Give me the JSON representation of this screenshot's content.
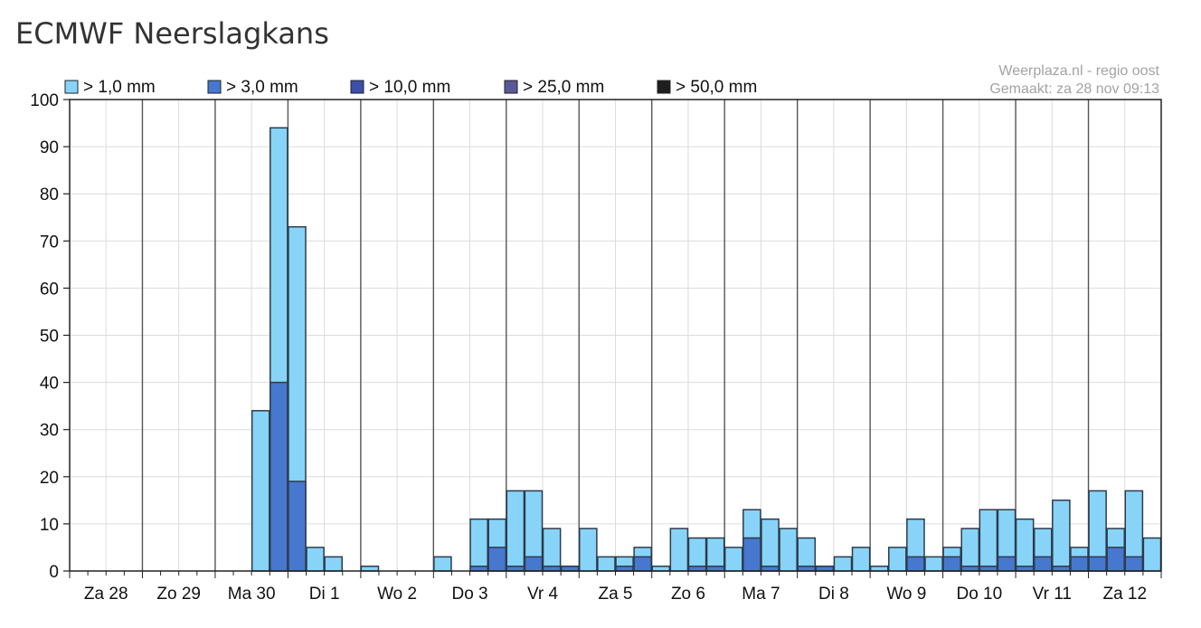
{
  "title": "ECMWF Neerslagkans",
  "credits": {
    "source": "Weerplaza.nl - regio oost",
    "made": "Gemaakt: za 28 nov 09:13"
  },
  "chart_data": {
    "type": "bar",
    "stacked": true,
    "ylim": [
      0,
      100
    ],
    "yticks": [
      0,
      10,
      20,
      30,
      40,
      50,
      60,
      70,
      80,
      90,
      100
    ],
    "legend_position": "top",
    "grid": true,
    "day_labels": [
      "Za 28",
      "Zo 29",
      "Ma 30",
      "Di 1",
      "Wo 2",
      "Do 3",
      "Vr 4",
      "Za 5",
      "Zo 6",
      "Ma 7",
      "Di 8",
      "Wo 9",
      "Do 10",
      "Vr 11",
      "Za 12"
    ],
    "bars_per_day": 4,
    "series": [
      {
        "name": "> 1,0 mm",
        "color": "#87d4f8",
        "values": [
          0,
          0,
          0,
          0,
          0,
          0,
          0,
          0,
          0,
          0,
          34,
          94,
          73,
          5,
          3,
          0,
          1,
          0,
          0,
          0,
          3,
          0,
          11,
          11,
          17,
          17,
          9,
          1,
          9,
          3,
          3,
          5,
          1,
          9,
          7,
          7,
          5,
          13,
          11,
          9,
          7,
          1,
          3,
          5,
          1,
          5,
          11,
          3,
          5,
          9,
          13,
          13,
          11,
          9,
          15,
          5,
          17,
          9,
          17,
          7
        ]
      },
      {
        "name": "> 3,0 mm",
        "color": "#4778d0",
        "values": [
          0,
          0,
          0,
          0,
          0,
          0,
          0,
          0,
          0,
          0,
          0,
          40,
          19,
          0,
          0,
          0,
          0,
          0,
          0,
          0,
          0,
          0,
          1,
          5,
          1,
          3,
          1,
          1,
          0,
          0,
          1,
          3,
          0,
          0,
          1,
          1,
          0,
          7,
          1,
          0,
          1,
          1,
          0,
          0,
          0,
          0,
          3,
          0,
          3,
          1,
          1,
          3,
          1,
          3,
          1,
          3,
          3,
          5,
          3,
          0
        ]
      },
      {
        "name": "> 10,0 mm",
        "color": "#3b4fae",
        "values": []
      },
      {
        "name": "> 25,0 mm",
        "color": "#5a5896",
        "values": []
      },
      {
        "name": "> 50,0 mm",
        "color": "#1e1e1e",
        "values": []
      }
    ]
  }
}
